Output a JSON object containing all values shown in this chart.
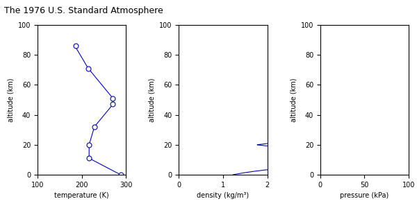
{
  "title": "The 1976 U.S. Standard Atmosphere",
  "title_fontsize": 9,
  "line_color": "#0000CC",
  "marker": "o",
  "marker_size": 5,
  "marker_facecolor": "white",
  "temp_xlim": [
    100,
    300
  ],
  "temp_xticks": [
    100,
    200,
    300
  ],
  "density_xlim": [
    0,
    2
  ],
  "density_xticks": [
    0,
    1,
    2
  ],
  "pressure_xlim": [
    0,
    100
  ],
  "pressure_xticks": [
    0,
    50,
    100
  ],
  "ylim": [
    0,
    100
  ],
  "yticks": [
    0,
    20,
    40,
    60,
    80,
    100
  ],
  "xlabel_temp": "temperature (K)",
  "xlabel_density": "density (kg/m³)",
  "xlabel_pressure": "pressure (kPa)",
  "ylabel": "altitude (km)",
  "temp_breakpoints_alt": [
    0,
    11,
    20,
    32,
    47,
    51,
    71,
    86
  ],
  "figwidth": 6.0,
  "figheight": 3.0,
  "dpi": 100
}
